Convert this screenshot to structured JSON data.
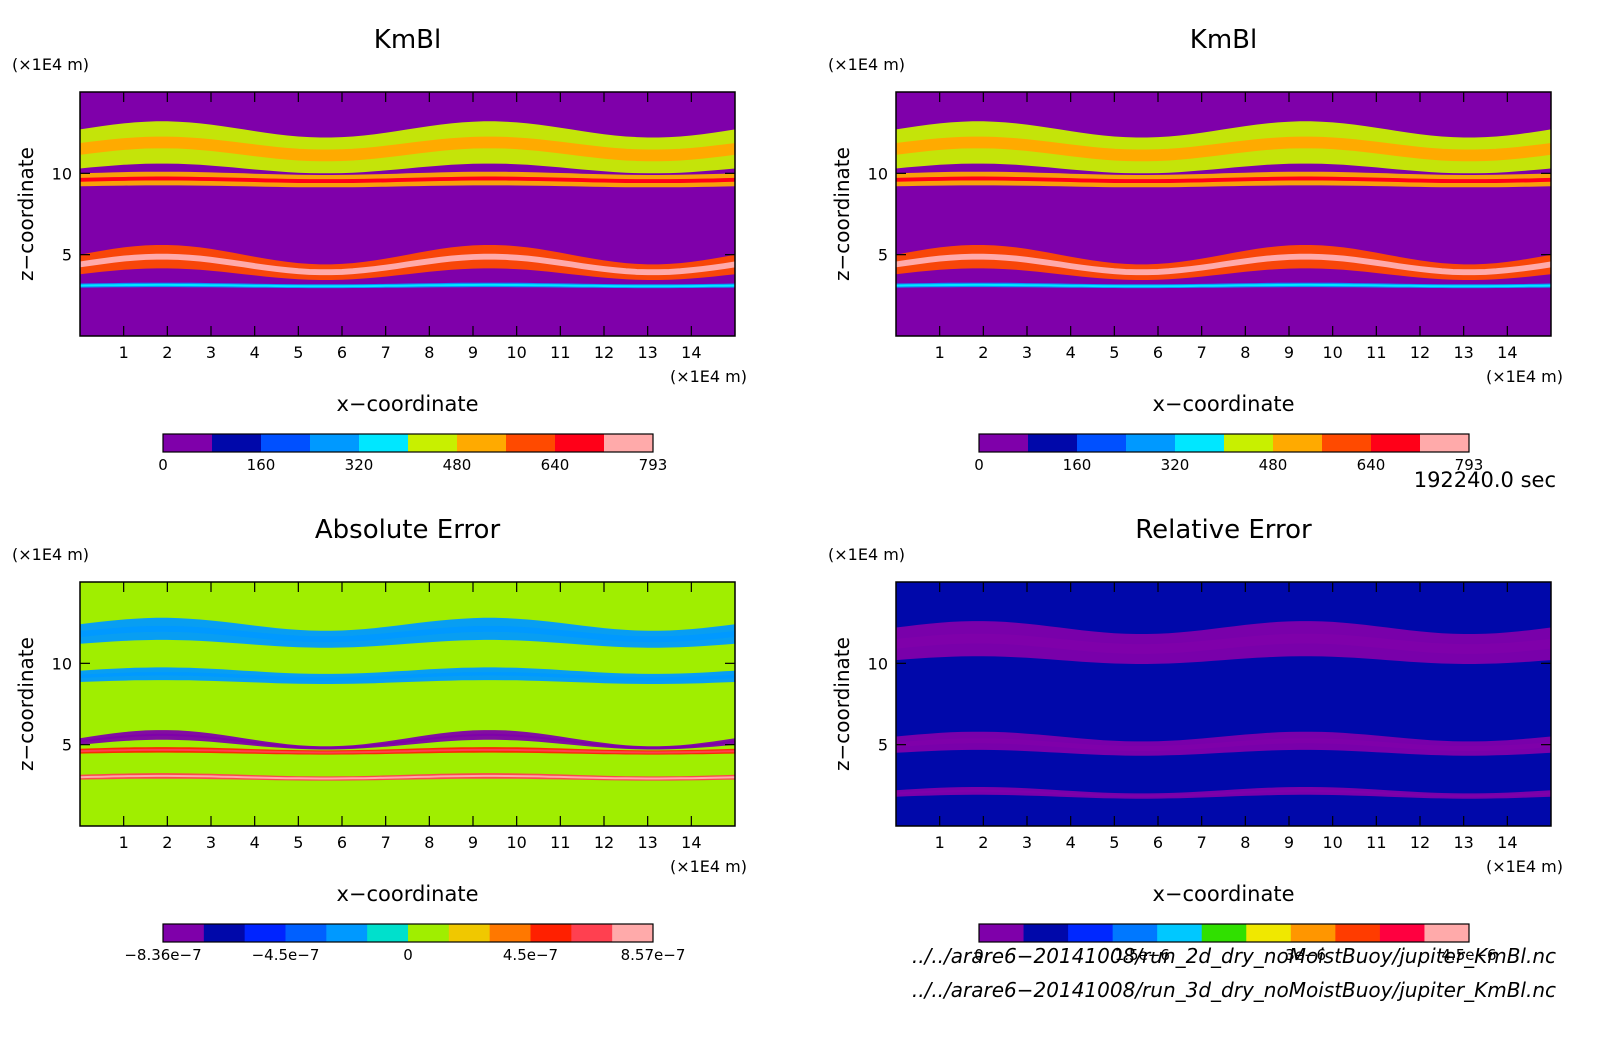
{
  "chart_data": [
    {
      "type": "heatmap",
      "title": "KmBl",
      "xlabel": "x−coordinate",
      "ylabel": "z−coordinate",
      "x_unit": "(×1E4 m)",
      "y_unit": "(×1E4 m)",
      "xlim": [
        0,
        15
      ],
      "ylim": [
        0,
        15
      ],
      "x_ticks": [
        "1",
        "2",
        "3",
        "4",
        "5",
        "6",
        "7",
        "8",
        "9",
        "10",
        "11",
        "12",
        "13",
        "14"
      ],
      "y_ticks": [
        "5",
        "10"
      ],
      "background_color": "#7f00aa",
      "colorbar": {
        "colors": [
          "#7f00aa",
          "#0008aa",
          "#0050ff",
          "#0099ff",
          "#00e7ff",
          "#c8f000",
          "#ffaa00",
          "#ff4a00",
          "#ff0018",
          "#ffaaaa"
        ],
        "labels": [
          "0",
          "160",
          "320",
          "480",
          "640",
          "793"
        ]
      },
      "features": [
        {
          "z": 11.5,
          "thickness": 2.4,
          "amp": 0.5,
          "value": 400
        },
        {
          "z": 9.6,
          "thickness": 0.8,
          "amp": 0.1,
          "value": 500
        },
        {
          "z": 4.4,
          "thickness": 1.2,
          "amp": 0.6,
          "value": 600
        },
        {
          "z": 3.1,
          "thickness": 0.25,
          "amp": 0.05,
          "value": 250
        }
      ]
    },
    {
      "type": "heatmap",
      "title": "KmBl",
      "xlabel": "x−coordinate",
      "ylabel": "z−coordinate",
      "x_unit": "(×1E4 m)",
      "y_unit": "(×1E4 m)",
      "xlim": [
        0,
        15
      ],
      "ylim": [
        0,
        15
      ],
      "x_ticks": [
        "1",
        "2",
        "3",
        "4",
        "5",
        "6",
        "7",
        "8",
        "9",
        "10",
        "11",
        "12",
        "13",
        "14"
      ],
      "y_ticks": [
        "5",
        "10"
      ],
      "background_color": "#7f00aa",
      "colorbar": {
        "colors": [
          "#7f00aa",
          "#0008aa",
          "#0050ff",
          "#0099ff",
          "#00e7ff",
          "#c8f000",
          "#ffaa00",
          "#ff4a00",
          "#ff0018",
          "#ffaaaa"
        ],
        "labels": [
          "0",
          "160",
          "320",
          "480",
          "640",
          "793"
        ]
      },
      "features": [
        {
          "z": 11.5,
          "thickness": 2.4,
          "amp": 0.5,
          "value": 400
        },
        {
          "z": 9.6,
          "thickness": 0.8,
          "amp": 0.1,
          "value": 500
        },
        {
          "z": 4.4,
          "thickness": 1.2,
          "amp": 0.6,
          "value": 600
        },
        {
          "z": 3.1,
          "thickness": 0.25,
          "amp": 0.05,
          "value": 250
        }
      ]
    },
    {
      "type": "heatmap",
      "title": "Absolute Error",
      "xlabel": "x−coordinate",
      "ylabel": "z−coordinate",
      "x_unit": "(×1E4 m)",
      "y_unit": "(×1E4 m)",
      "xlim": [
        0,
        15
      ],
      "ylim": [
        0,
        15
      ],
      "x_ticks": [
        "1",
        "2",
        "3",
        "4",
        "5",
        "6",
        "7",
        "8",
        "9",
        "10",
        "11",
        "12",
        "13",
        "14"
      ],
      "y_ticks": [
        "5",
        "10"
      ],
      "background_color": "#a0ee00",
      "colorbar": {
        "colors": [
          "#7f00aa",
          "#0008aa",
          "#0024ff",
          "#0060ff",
          "#0099ff",
          "#00e0cc",
          "#a0ee00",
          "#f0c800",
          "#ff7800",
          "#ff2000",
          "#ff4050",
          "#ffaaaa"
        ],
        "labels": [
          "−8.36e−7",
          "−4.5e−7",
          "0",
          "4.5e−7",
          "8.57e−7"
        ]
      },
      "features": [
        {
          "z": 11.8,
          "thickness": 1.2,
          "amp": 0.4,
          "value": -2e-07
        },
        {
          "z": 9.2,
          "thickness": 0.7,
          "amp": 0.2,
          "value": -1.5e-07
        },
        {
          "z": 5.2,
          "thickness": 0.4,
          "amp": 0.5,
          "value": -7e-07
        },
        {
          "z": 4.6,
          "thickness": 0.3,
          "amp": 0.1,
          "value": 5e-07
        },
        {
          "z": 3.0,
          "thickness": 0.3,
          "amp": 0.1,
          "value": 6e-07
        }
      ]
    },
    {
      "type": "heatmap",
      "title": "Relative Error",
      "xlabel": "x−coordinate",
      "ylabel": "z−coordinate",
      "x_unit": "(×1E4 m)",
      "y_unit": "(×1E4 m)",
      "xlim": [
        0,
        15
      ],
      "ylim": [
        0,
        15
      ],
      "x_ticks": [
        "1",
        "2",
        "3",
        "4",
        "5",
        "6",
        "7",
        "8",
        "9",
        "10",
        "11",
        "12",
        "13",
        "14"
      ],
      "y_ticks": [
        "5",
        "10"
      ],
      "background_color": "#0008aa",
      "colorbar": {
        "colors": [
          "#7f00aa",
          "#0008aa",
          "#0028ff",
          "#0078ff",
          "#00c8ff",
          "#30e000",
          "#f0e800",
          "#ff9600",
          "#ff3c00",
          "#ff0040",
          "#ffaaaa"
        ],
        "labels": [
          "0",
          "1.5e−6",
          "3e−6",
          "4.5e−6"
        ]
      },
      "features": [
        {
          "z": 11.2,
          "thickness": 2.0,
          "amp": 0.4,
          "value": 0
        },
        {
          "z": 5.0,
          "thickness": 1.0,
          "amp": 0.3,
          "value": 0
        },
        {
          "z": 2.0,
          "thickness": 0.4,
          "amp": 0.2,
          "value": 0
        }
      ]
    }
  ],
  "time_label": "192240.0 sec",
  "file_paths": [
    "../../arare6−20141008/run_2d_dry_noMoistBuoy/jupiter_KmBl.nc",
    "../../arare6−20141008/run_3d_dry_noMoistBuoy/jupiter_KmBl.nc"
  ]
}
